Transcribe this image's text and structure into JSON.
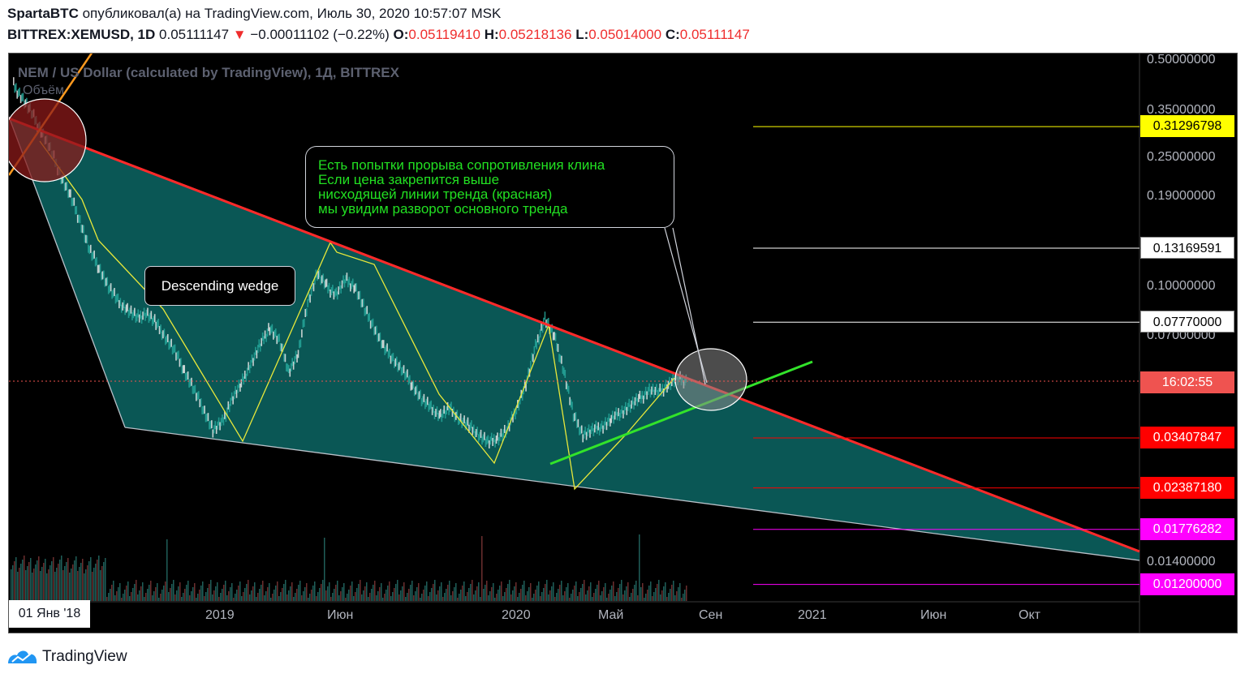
{
  "header": {
    "author": "SpartaBTC",
    "published_text": "опубликовал(а) на TradingView.com, Июль 30, 2020 10:57:07 MSK",
    "symbol": "BITTREX:XEMUSD, 1D",
    "last_price": "0.05111147",
    "change_arrow": "▼",
    "change": "−0.00011102 (−0.22%)",
    "open_label": "O:",
    "open": "0.05119410",
    "high_label": "H:",
    "high": "0.05218136",
    "low_label": "L:",
    "low": "0.05014000",
    "close_label": "C:",
    "close": "0.05111147"
  },
  "chart": {
    "pair_title": "NEM / US Dollar (calculated by TradingView), 1Д, BITTREX",
    "volume_label": "Объём",
    "start_date": "01 Янв '18",
    "callout_main": [
      "Есть попытки прорыва сопротивления клина",
      "Если цена закрепится выше",
      "нисходящей линии тренда (красная)",
      "мы увидим разворот основного тренда"
    ],
    "callout_wedge": "Descending wedge",
    "countdown": "16:02:55",
    "colors": {
      "background": "#000000",
      "wedge_fill": "#0b5c5a",
      "resistance_line": "#ff2a2a",
      "support_line": "#32e32a",
      "zigzag": "#e8e83a",
      "accent_up": "#26a69a",
      "accent_down": "#ef5350"
    }
  },
  "chart_data": {
    "type": "line",
    "scale": "log",
    "title": "NEM / US Dollar (calculated by TradingView), 1Д, BITTREX",
    "ylim": [
      0.012,
      0.5
    ],
    "y_ticks": [
      "0.50000000",
      "0.35000000",
      "0.25000000",
      "0.19000000",
      "0.10000000",
      "0.07000000",
      "0.01400000"
    ],
    "x_ticks": [
      "2019",
      "Июн",
      "2020",
      "Май",
      "Сен",
      "2021",
      "Июн",
      "Окт"
    ],
    "horizontal_levels": [
      {
        "label": "0.31296798",
        "value": 0.31296798,
        "color": "#ffff00",
        "text_color": "#000000"
      },
      {
        "label": "0.13169591",
        "value": 0.13169591,
        "color": "#ffffff",
        "text_color": "#000000"
      },
      {
        "label": "0.07770000",
        "value": 0.0777,
        "color": "#ffffff",
        "text_color": "#000000"
      },
      {
        "label": "0.03407847",
        "value": 0.03407847,
        "color": "#ff0000",
        "text_color": "#ffffff"
      },
      {
        "label": "0.02387180",
        "value": 0.0238718,
        "color": "#ff0000",
        "text_color": "#ffffff"
      },
      {
        "label": "0.01776282",
        "value": 0.01776282,
        "color": "#ff00ff",
        "text_color": "#ffffff"
      },
      {
        "label": "0.01200000",
        "value": 0.012,
        "color": "#ff00ff",
        "text_color": "#ffffff"
      }
    ],
    "series": [
      {
        "values": [
          0.42,
          0.38,
          0.34,
          0.3,
          0.26,
          0.22,
          0.19,
          0.16,
          0.13,
          0.115,
          0.1,
          0.09,
          0.085,
          0.08,
          0.083,
          0.077,
          0.07,
          0.063,
          0.055,
          0.048,
          0.042,
          0.036,
          0.038,
          0.045,
          0.05,
          0.058,
          0.066,
          0.075,
          0.068,
          0.055,
          0.062,
          0.09,
          0.11,
          0.1,
          0.095,
          0.105,
          0.1,
          0.085,
          0.075,
          0.065,
          0.06,
          0.055,
          0.05,
          0.045,
          0.042,
          0.04,
          0.042,
          0.039,
          0.037,
          0.035,
          0.033,
          0.034,
          0.036,
          0.042,
          0.05,
          0.065,
          0.08,
          0.07,
          0.055,
          0.04,
          0.035,
          0.036,
          0.037,
          0.039,
          0.041,
          0.043,
          0.045,
          0.048,
          0.047,
          0.05,
          0.052,
          0.051
        ]
      }
    ]
  }
}
